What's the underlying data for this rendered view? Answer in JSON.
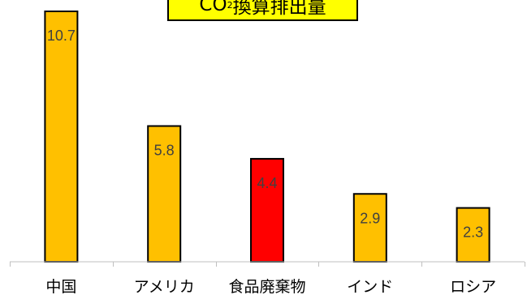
{
  "chart_data": {
    "type": "bar",
    "title_main": "CO",
    "title_sub": "2",
    "title_rest": "換算排出量",
    "categories": [
      "中国",
      "アメリカ",
      "食品廃棄物",
      "インド",
      "ロシア"
    ],
    "values": [
      10.7,
      5.8,
      4.4,
      2.9,
      2.3
    ],
    "value_labels": [
      "10.7",
      "5.8",
      "4.4",
      "2.9",
      "2.3"
    ],
    "colors": [
      "#ffc000",
      "#ffc000",
      "#ff0000",
      "#ffc000",
      "#ffc000"
    ],
    "ylim": [
      0,
      10.7
    ],
    "grid": false,
    "legend": "none"
  }
}
